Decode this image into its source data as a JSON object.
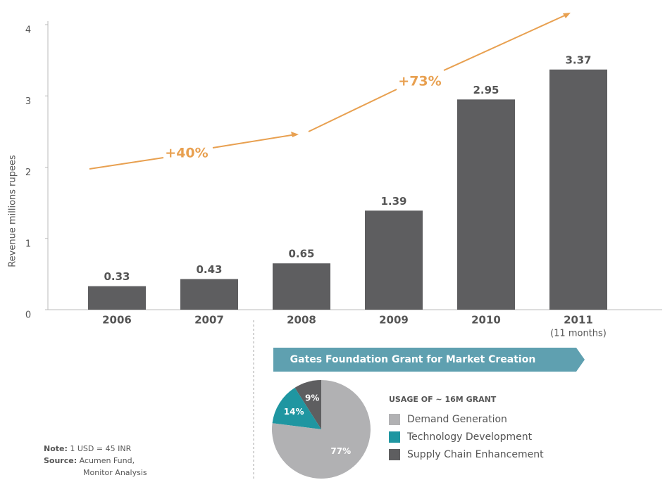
{
  "chart_data": [
    {
      "type": "bar",
      "y_label": "Revenue millions rupees",
      "categories": [
        "2006",
        "2007",
        "2008",
        "2009",
        "2010",
        "2011"
      ],
      "values": [
        0.33,
        0.43,
        0.65,
        1.39,
        2.95,
        3.37
      ],
      "color": "#5e5e60",
      "ylim": [
        0,
        4
      ],
      "yticks": [
        0,
        1,
        2,
        3,
        4
      ],
      "annotations": [
        "+40%",
        "+73%"
      ],
      "category_note": "(11 months)"
    },
    {
      "type": "pie",
      "title": "Gates Foundation Grant for Market Creation",
      "legend_title": "USAGE OF ~ 16M GRANT",
      "series": [
        {
          "name": "Demand Generation",
          "color": "#b1b1b3",
          "values": [
            77
          ]
        },
        {
          "name": "Technology Development",
          "color": "#1f96a1",
          "values": [
            14
          ]
        },
        {
          "name": "Supply Chain Enhancement",
          "color": "#5e5e60",
          "values": [
            9
          ]
        }
      ]
    }
  ],
  "note": {
    "label": "Note:",
    "text": "1 USD = 45 INR"
  },
  "source": {
    "label": "Source:",
    "lines": [
      "Acumen Fund,",
      "Monitor Analysis"
    ]
  }
}
